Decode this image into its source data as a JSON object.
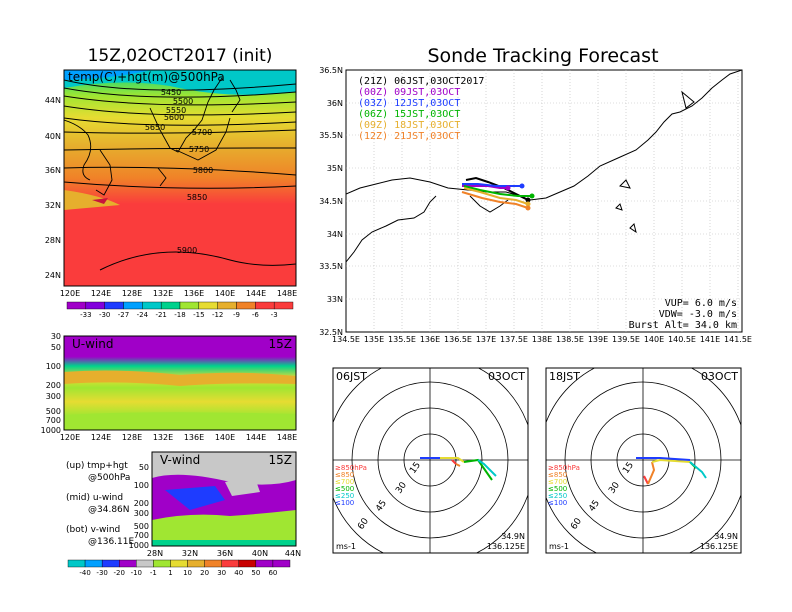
{
  "header": {
    "left_title": "15Z,02OCT2017 (init)",
    "right_title": "Sonde Tracking Forecast"
  },
  "panels": {
    "temp_map": {
      "label": "temp(C)+hgt(m)@500hPa",
      "lat_ticks": [
        "44N",
        "40N",
        "36N",
        "32N",
        "28N",
        "24N"
      ],
      "lon_ticks": [
        "120E",
        "124E",
        "128E",
        "132E",
        "136E",
        "140E",
        "144E",
        "148E"
      ],
      "contours": [
        "5450",
        "5500",
        "5550",
        "5600",
        "5650",
        "5700",
        "5750",
        "5800",
        "5850",
        "5900"
      ],
      "colorbar_ticks": [
        "-33",
        "-30",
        "-27",
        "-24",
        "-21",
        "-18",
        "-15",
        "-12",
        "-9",
        "-6",
        "-3"
      ],
      "colors": [
        "#a000c8",
        "#8200dc",
        "#1e3cff",
        "#00a0ff",
        "#00c8c8",
        "#00d28c",
        "#a0e632",
        "#e6dc32",
        "#e6af2d",
        "#f08228",
        "#fa3c3c"
      ]
    },
    "u_wind": {
      "label": "U-wind",
      "time": "15Z",
      "p_ticks": [
        "30",
        "50",
        "100",
        "200",
        "300",
        "500",
        "700",
        "1000"
      ],
      "lon_ticks": [
        "120E",
        "124E",
        "128E",
        "132E",
        "136E",
        "140E",
        "144E",
        "148E"
      ]
    },
    "v_wind": {
      "label": "V-wind",
      "time": "15Z",
      "p_ticks": [
        "50",
        "100",
        "200",
        "300",
        "500",
        "700",
        "1000"
      ],
      "lat_ticks": [
        "28N",
        "32N",
        "36N",
        "40N",
        "44N"
      ],
      "colorbar_ticks": [
        "-40",
        "-30",
        "-20",
        "-10",
        "-1",
        "1",
        "10",
        "20",
        "30",
        "40",
        "50",
        "60"
      ],
      "colors": [
        "#00c8c8",
        "#00a0ff",
        "#1e3cff",
        "#a000c8",
        "#c8c8c8",
        "#a0e632",
        "#e6dc32",
        "#e6af2d",
        "#f08228",
        "#fa3c3c",
        "#c80000",
        "#a000c8"
      ]
    },
    "legend_notes": [
      {
        "tag": "(up) tmp+hgt",
        "detail": "@500hPa"
      },
      {
        "tag": "(mid) u-wind",
        "detail": "@34.86N"
      },
      {
        "tag": "(bot) v-wind",
        "detail": "@136.11E"
      }
    ],
    "track_map": {
      "lat_ticks": [
        "36.5N",
        "36N",
        "35.5N",
        "35N",
        "34.5N",
        "34N",
        "33.5N",
        "33N",
        "32.5N"
      ],
      "lon_ticks": [
        "134.5E",
        "135E",
        "135.5E",
        "136E",
        "136.5E",
        "137E",
        "137.5E",
        "138E",
        "138.5E",
        "139E",
        "139.5E",
        "140E",
        "140.5E",
        "141E",
        "141.5E"
      ],
      "legend": [
        {
          "text": "(21Z) 06JST,03OCT2017",
          "color": "#000000"
        },
        {
          "text": "(00Z) 09JST,03OCT",
          "color": "#a000c8"
        },
        {
          "text": "(03Z) 12JST,03OCT",
          "color": "#1e3cff"
        },
        {
          "text": "(06Z) 15JST,03OCT",
          "color": "#00b400"
        },
        {
          "text": "(09Z) 18JST,03OCT",
          "color": "#e6af2d"
        },
        {
          "text": "(12Z) 21JST,03OCT",
          "color": "#f08228"
        }
      ],
      "params": [
        "VUP= 6.0 m/s",
        "VDW= -3.0 m/s",
        "Burst Alt= 34.0 km"
      ]
    },
    "hodo_left": {
      "time": "06JST",
      "date": "03OCT",
      "rings": [
        "15",
        "30",
        "45",
        "60"
      ],
      "levels": [
        {
          "text": "≥850hPa",
          "color": "#fa3c3c"
        },
        {
          "text": "≤850",
          "color": "#f08228"
        },
        {
          "text": "≤700",
          "color": "#e6dc32"
        },
        {
          "text": "≤500",
          "color": "#00b400"
        },
        {
          "text": "≤250",
          "color": "#00c8c8"
        },
        {
          "text": "≤100",
          "color": "#1e3cff"
        }
      ],
      "unit": "ms-1",
      "lat": "34.9N",
      "lon": "136.125E"
    },
    "hodo_right": {
      "time": "18JST",
      "date": "03OCT",
      "rings": [
        "15",
        "30",
        "45",
        "60"
      ],
      "levels": [
        {
          "text": "≥850hPa",
          "color": "#fa3c3c"
        },
        {
          "text": "≤850",
          "color": "#f08228"
        },
        {
          "text": "≤700",
          "color": "#e6dc32"
        },
        {
          "text": "≤500",
          "color": "#00b400"
        },
        {
          "text": "≤250",
          "color": "#00c8c8"
        },
        {
          "text": "≤100",
          "color": "#1e3cff"
        }
      ],
      "unit": "ms-1",
      "lat": "34.9N",
      "lon": "136.125E"
    }
  }
}
